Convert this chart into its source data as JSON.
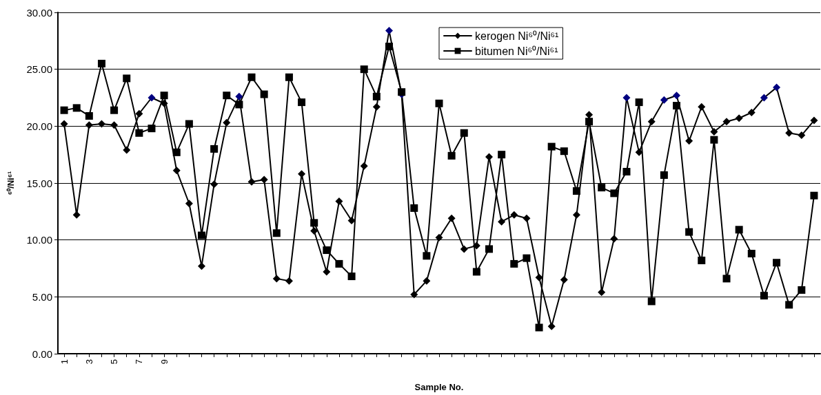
{
  "chart_data": {
    "type": "line",
    "xlabel": "Sample No.",
    "ylabel": "⁶⁰/Ni⁶¹",
    "categories": [
      "1",
      null,
      "3",
      null,
      "5",
      null,
      "7",
      null,
      "9",
      null,
      null,
      null,
      null,
      null,
      null,
      null,
      null,
      null,
      null,
      null,
      null,
      null,
      null,
      null,
      null,
      null,
      null,
      null,
      null,
      null,
      null,
      null,
      null,
      null,
      null,
      null,
      null,
      null,
      null,
      null,
      null,
      null,
      null,
      null,
      null,
      null,
      null,
      null,
      null,
      null,
      null,
      null,
      null,
      null,
      null,
      null,
      null,
      null,
      null,
      null,
      null
    ],
    "series": [
      {
        "name": "kerogen Ni⁶⁰/Ni⁶¹",
        "color": "#000000",
        "marker": "diamond",
        "values": [
          20.2,
          12.2,
          20.1,
          20.2,
          20.1,
          17.9,
          21.1,
          22.5,
          22.0,
          16.1,
          13.2,
          7.7,
          14.9,
          20.3,
          22.6,
          15.1,
          15.3,
          6.6,
          6.4,
          15.8,
          10.8,
          7.2,
          13.4,
          11.7,
          16.5,
          21.7,
          28.4,
          22.8,
          5.2,
          6.4,
          10.2,
          11.9,
          9.2,
          9.5,
          17.3,
          11.6,
          12.2,
          11.9,
          6.7,
          2.4,
          6.5,
          12.2,
          21.0,
          5.4,
          10.1,
          22.5,
          17.7,
          20.4,
          22.3,
          22.7,
          18.7,
          21.7,
          19.5,
          20.4,
          20.7,
          21.2,
          22.5,
          23.4,
          19.4,
          19.2,
          20.5
        ],
        "colors": [
          "#000000",
          "#000000",
          "#000000",
          "#000000",
          "#000000",
          "#000000",
          "#000000",
          "#000080",
          "#000000",
          "#000000",
          "#000000",
          "#000000",
          "#000000",
          "#000000",
          "#000080",
          "#000000",
          "#000000",
          "#000000",
          "#000000",
          "#000000",
          "#000000",
          "#000000",
          "#000000",
          "#000000",
          "#000000",
          "#000000",
          "#000080",
          "#000080",
          "#000000",
          "#000000",
          "#000000",
          "#000000",
          "#000000",
          "#000000",
          "#000000",
          "#000000",
          "#000000",
          "#000000",
          "#000000",
          "#000000",
          "#000000",
          "#000000",
          "#000000",
          "#000000",
          "#000000",
          "#000080",
          "#000000",
          "#000000",
          "#000080",
          "#000080",
          "#000000",
          "#000000",
          "#000000",
          "#000000",
          "#000000",
          "#000000",
          "#000080",
          "#000080",
          "#000000",
          "#000000",
          "#000000"
        ]
      },
      {
        "name": "bitumen Ni⁶⁰/Ni⁶¹",
        "color": "#000000",
        "marker": "square",
        "values": [
          21.4,
          21.6,
          20.9,
          25.5,
          21.4,
          24.2,
          19.4,
          19.8,
          22.7,
          17.7,
          20.2,
          10.4,
          18.0,
          22.7,
          21.9,
          24.3,
          22.8,
          10.6,
          24.3,
          22.1,
          11.5,
          9.1,
          7.9,
          6.8,
          25.0,
          22.6,
          27.0,
          23.0,
          12.8,
          8.6,
          22.0,
          17.4,
          19.4,
          7.2,
          9.2,
          17.5,
          7.9,
          8.4,
          2.3,
          18.2,
          17.8,
          14.3,
          20.4,
          14.6,
          14.1,
          16.0,
          22.1,
          4.6,
          15.7,
          21.8,
          10.7,
          8.2,
          18.8,
          6.6,
          10.9,
          8.8,
          5.1,
          8.0,
          4.3,
          5.6,
          13.9
        ]
      }
    ],
    "ylim": [
      0,
      30
    ],
    "yticks": [
      {
        "value": 0,
        "label": "0.00"
      },
      {
        "value": 5,
        "label": "5.00"
      },
      {
        "value": 10,
        "label": "10.00"
      },
      {
        "value": 15,
        "label": "15.00"
      },
      {
        "value": 20,
        "label": "20.00"
      },
      {
        "value": 25,
        "label": "25.00"
      },
      {
        "value": 30,
        "label": "30.00"
      }
    ],
    "grid": "y",
    "legend": "top",
    "line_style": "solid"
  }
}
